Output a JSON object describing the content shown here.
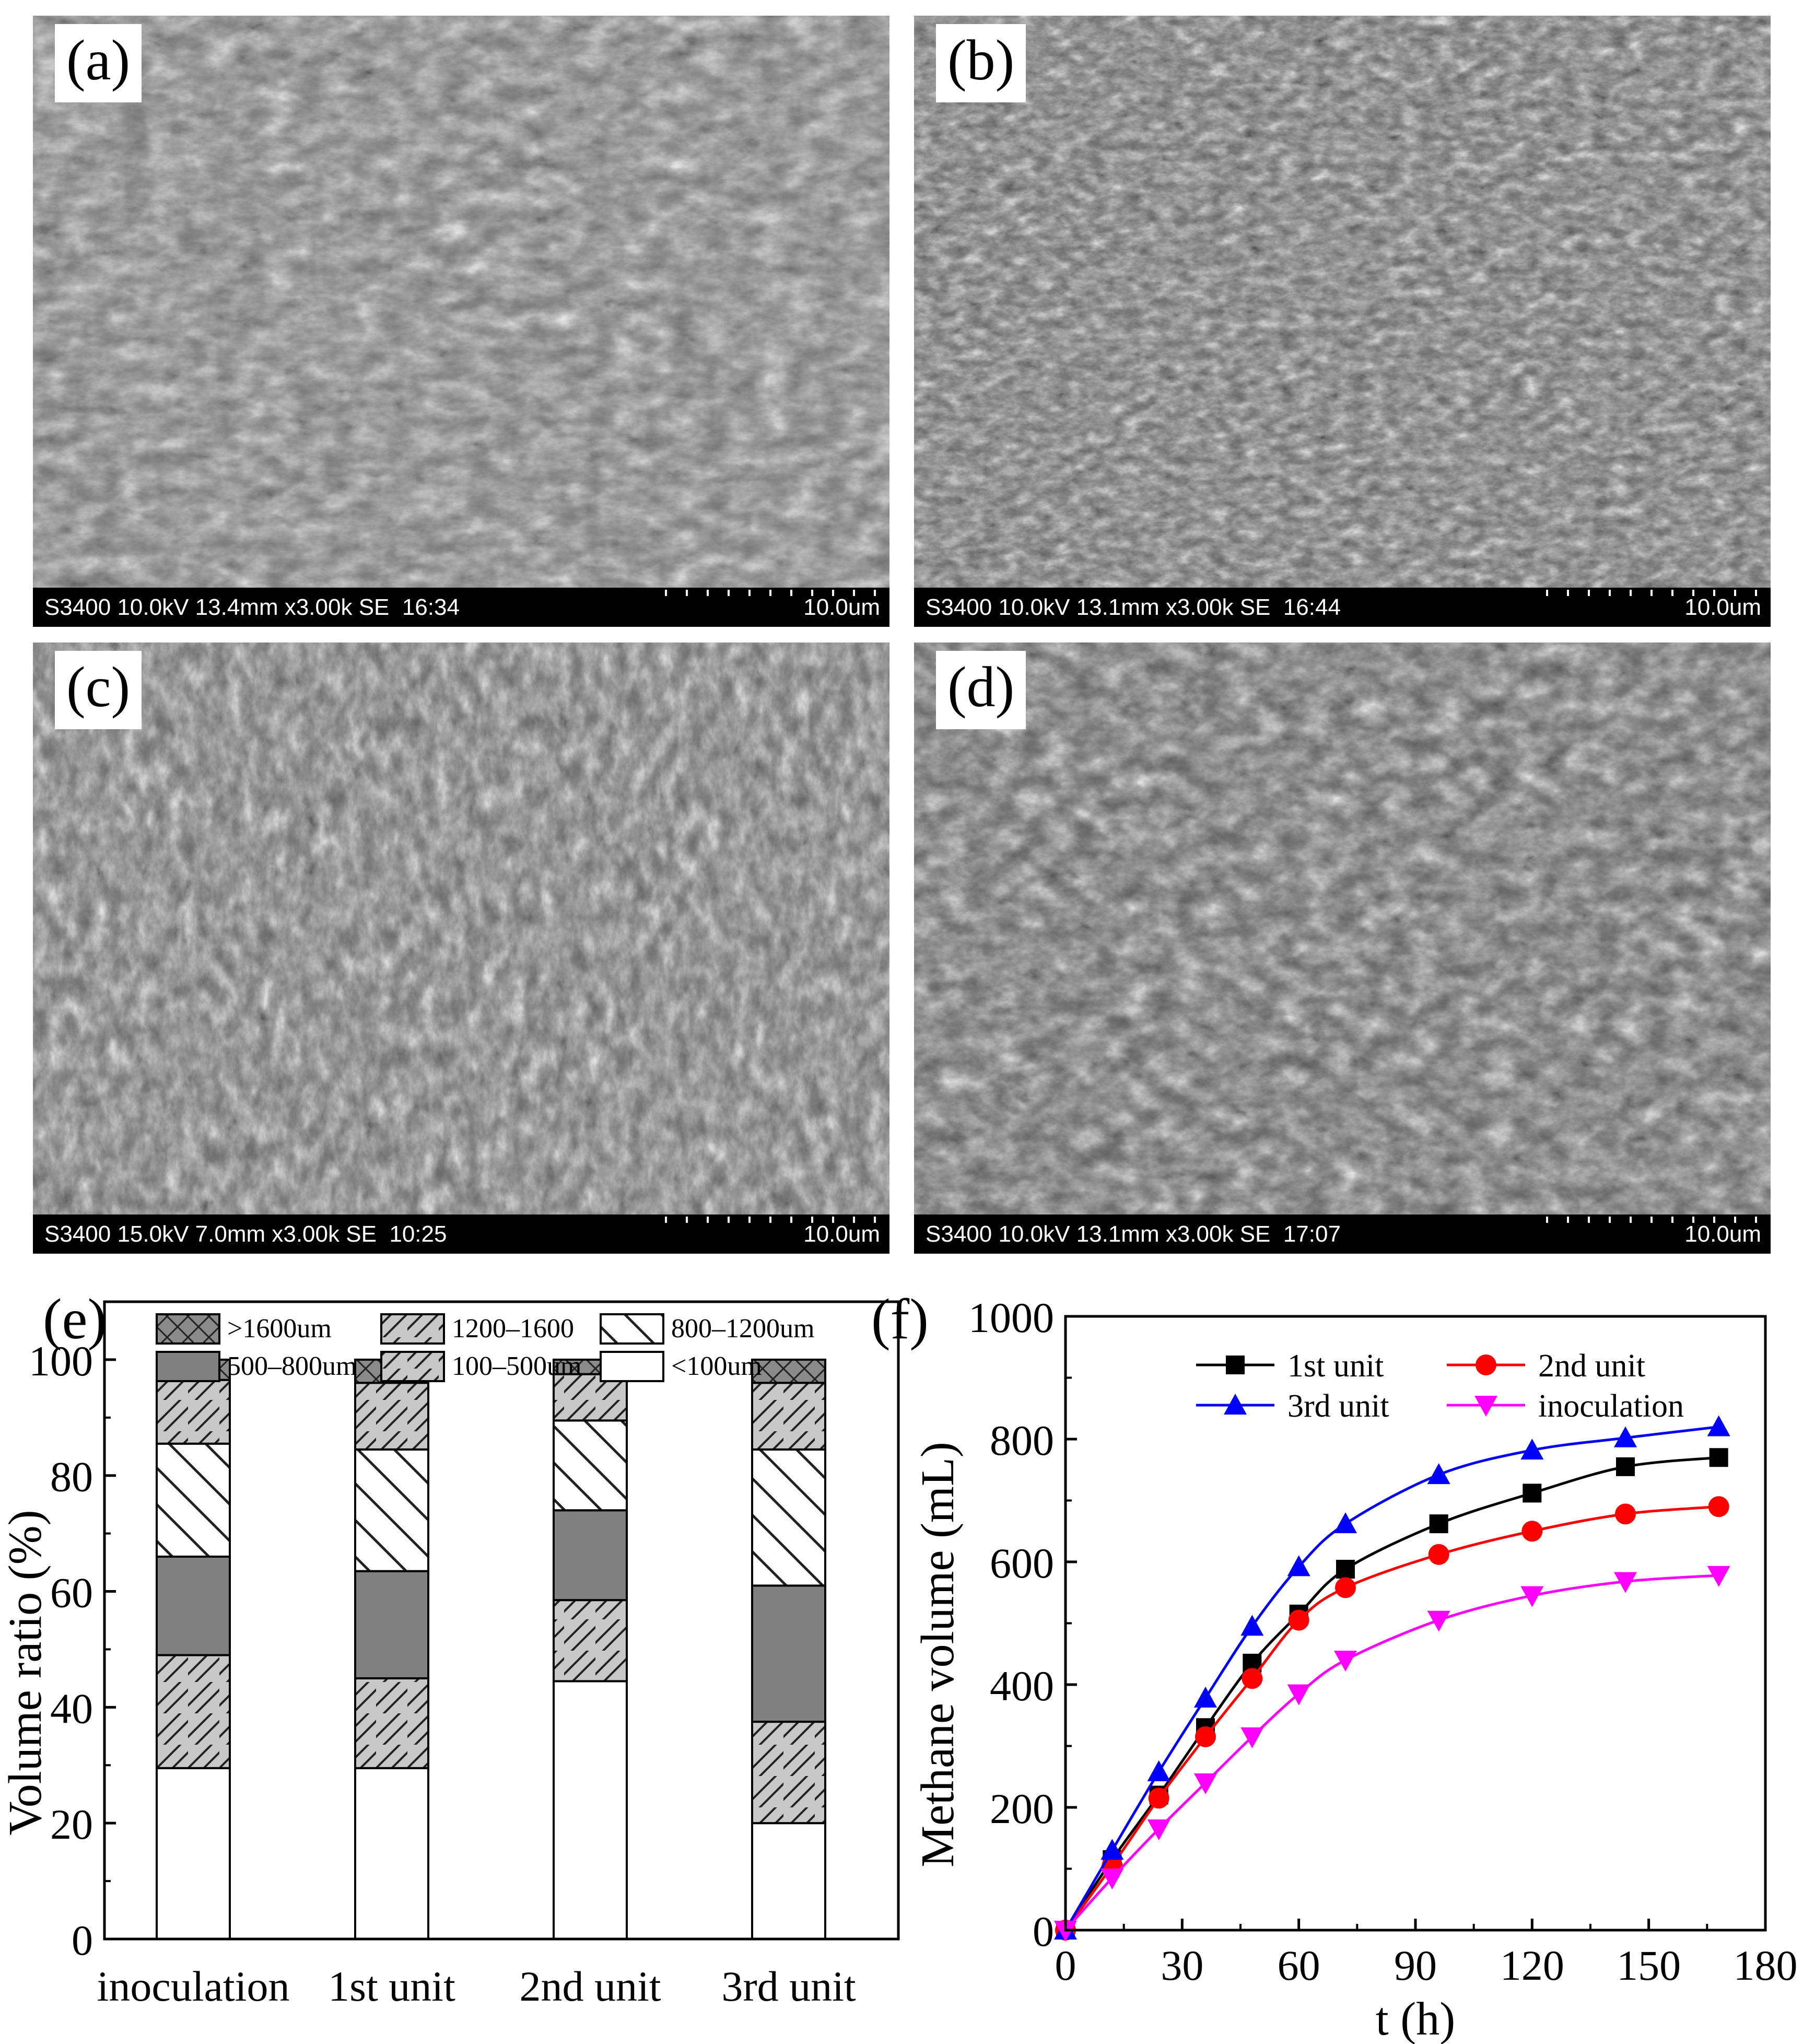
{
  "sem_panels": [
    {
      "label": "(a)",
      "info": "S3400 10.0kV 13.4mm x3.00k SE  16:34",
      "scale": "10.0um"
    },
    {
      "label": "(b)",
      "info": "S3400 10.0kV 13.1mm x3.00k SE  16:44",
      "scale": "10.0um"
    },
    {
      "label": "(c)",
      "info": "S3400 15.0kV 7.0mm x3.00k SE  10:25",
      "scale": "10.0um"
    },
    {
      "label": "(d)",
      "info": "S3400 10.0kV 13.1mm x3.00k SE  17:07",
      "scale": "10.0um"
    }
  ],
  "chart_data": [
    {
      "panel": "(e)",
      "type": "bar",
      "stacked": true,
      "categories": [
        "inoculation",
        "1st unit",
        "2nd unit",
        "3rd unit"
      ],
      "ylabel": "Volume ratio (%)",
      "xlabel": "",
      "ylim": [
        0,
        110
      ],
      "yticks": [
        "0",
        "20",
        "40",
        "60",
        "80",
        "100"
      ],
      "legend_position": "top",
      "series": [
        {
          "name": "<100um",
          "values": [
            29.5,
            29.5,
            44.5,
            20.0
          ]
        },
        {
          "name": "100–500um",
          "values": [
            19.5,
            15.5,
            14.0,
            17.5
          ]
        },
        {
          "name": "500–800um",
          "values": [
            17.0,
            18.5,
            15.5,
            23.5
          ]
        },
        {
          "name": "800–1200um",
          "values": [
            19.5,
            21.0,
            15.5,
            23.5
          ]
        },
        {
          "name": "1200–1600",
          "values": [
            11.0,
            11.5,
            8.0,
            11.5
          ]
        },
        {
          "name": ">1600um",
          "values": [
            3.5,
            4.0,
            2.5,
            4.0
          ]
        }
      ],
      "legend_order": [
        ">1600um",
        "1200–1600",
        "800–1200um",
        "500–800um",
        "100–500um",
        "<100um"
      ]
    },
    {
      "panel": "(f)",
      "type": "line",
      "xlabel": "t (h)",
      "ylabel": "Methane volume (mL)",
      "xlim": [
        0,
        180
      ],
      "ylim": [
        0,
        1000
      ],
      "xticks": [
        "0",
        "30",
        "60",
        "90",
        "120",
        "150",
        "180"
      ],
      "yticks": [
        "0",
        "200",
        "400",
        "600",
        "800",
        "1000"
      ],
      "legend_position": "top",
      "x": [
        0,
        12,
        24,
        36,
        48,
        60,
        72,
        96,
        120,
        144,
        168
      ],
      "series": [
        {
          "name": "1st unit",
          "color": "#000000",
          "marker": "square",
          "values": [
            0,
            115,
            220,
            330,
            435,
            515,
            588,
            662,
            712,
            755,
            770
          ]
        },
        {
          "name": "2nd unit",
          "color": "#ff0000",
          "marker": "circle",
          "values": [
            0,
            105,
            215,
            315,
            410,
            505,
            558,
            612,
            650,
            678,
            690
          ]
        },
        {
          "name": "3rd unit",
          "color": "#0000ff",
          "marker": "triangle-up",
          "values": [
            0,
            130,
            258,
            378,
            495,
            592,
            662,
            742,
            782,
            802,
            820
          ]
        },
        {
          "name": "inoculation",
          "color": "#ff00ff",
          "marker": "triangle-down",
          "values": [
            0,
            85,
            165,
            240,
            315,
            385,
            440,
            505,
            545,
            568,
            578
          ]
        }
      ]
    }
  ]
}
